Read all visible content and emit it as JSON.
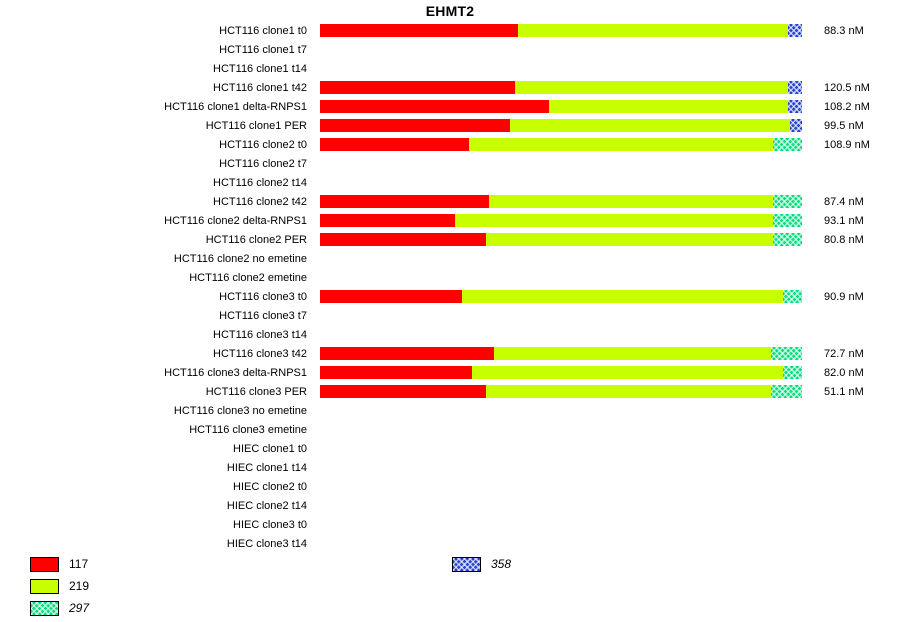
{
  "title": "EHMT2",
  "chart_data": {
    "type": "bar",
    "orientation": "horizontal",
    "stacked": true,
    "title": "EHMT2",
    "unit": "nM",
    "note": "segment pct values are percent of full bar length; rows with empty segments show no bar",
    "series": [
      {
        "name": "117",
        "color": "#ff0000",
        "pattern": false
      },
      {
        "name": "219",
        "color": "#c8ff00",
        "pattern": false
      },
      {
        "name": "297",
        "color": "#00dd7d",
        "pattern": true
      },
      {
        "name": "358",
        "color": "#2442cc",
        "pattern": true
      }
    ],
    "rows": [
      {
        "label": "HCT116 clone1 t0",
        "value": "88.3 nM",
        "segments": [
          {
            "series": "117",
            "pct": 41
          },
          {
            "series": "219",
            "pct": 56
          },
          {
            "series": "358",
            "pct": 3
          }
        ]
      },
      {
        "label": "HCT116 clone1 t7",
        "value": "",
        "segments": []
      },
      {
        "label": "HCT116 clone1 t14",
        "value": "",
        "segments": []
      },
      {
        "label": "HCT116 clone1 t42",
        "value": "120.5 nM",
        "segments": [
          {
            "series": "117",
            "pct": 40.5
          },
          {
            "series": "219",
            "pct": 56.5
          },
          {
            "series": "358",
            "pct": 3
          }
        ]
      },
      {
        "label": "HCT116 clone1 delta-RNPS1",
        "value": "108.2 nM",
        "segments": [
          {
            "series": "117",
            "pct": 47.5
          },
          {
            "series": "219",
            "pct": 49.5
          },
          {
            "series": "358",
            "pct": 3
          }
        ]
      },
      {
        "label": "HCT116 clone1 PER",
        "value": "99.5 nM",
        "segments": [
          {
            "series": "117",
            "pct": 39.5
          },
          {
            "series": "219",
            "pct": 58
          },
          {
            "series": "358",
            "pct": 2.5
          }
        ]
      },
      {
        "label": "HCT116 clone2 t0",
        "value": "108.9 nM",
        "segments": [
          {
            "series": "117",
            "pct": 31
          },
          {
            "series": "219",
            "pct": 63
          },
          {
            "series": "297",
            "pct": 6
          }
        ]
      },
      {
        "label": "HCT116 clone2 t7",
        "value": "",
        "segments": []
      },
      {
        "label": "HCT116 clone2 t14",
        "value": "",
        "segments": []
      },
      {
        "label": "HCT116 clone2 t42",
        "value": "87.4 nM",
        "segments": [
          {
            "series": "117",
            "pct": 35
          },
          {
            "series": "219",
            "pct": 59
          },
          {
            "series": "297",
            "pct": 6
          }
        ]
      },
      {
        "label": "HCT116 clone2 delta-RNPS1",
        "value": "93.1 nM",
        "segments": [
          {
            "series": "117",
            "pct": 28
          },
          {
            "series": "219",
            "pct": 66
          },
          {
            "series": "297",
            "pct": 6
          }
        ]
      },
      {
        "label": "HCT116 clone2 PER",
        "value": "80.8 nM",
        "segments": [
          {
            "series": "117",
            "pct": 34.5
          },
          {
            "series": "219",
            "pct": 59.5
          },
          {
            "series": "297",
            "pct": 6
          }
        ]
      },
      {
        "label": "HCT116 clone2 no emetine",
        "value": "",
        "segments": []
      },
      {
        "label": "HCT116 clone2 emetine",
        "value": "",
        "segments": []
      },
      {
        "label": "HCT116 clone3 t0",
        "value": "90.9 nM",
        "segments": [
          {
            "series": "117",
            "pct": 29.5
          },
          {
            "series": "219",
            "pct": 66.5
          },
          {
            "series": "297",
            "pct": 4
          }
        ]
      },
      {
        "label": "HCT116 clone3 t7",
        "value": "",
        "segments": []
      },
      {
        "label": "HCT116 clone3 t14",
        "value": "",
        "segments": []
      },
      {
        "label": "HCT116 clone3 t42",
        "value": "72.7 nM",
        "segments": [
          {
            "series": "117",
            "pct": 36
          },
          {
            "series": "219",
            "pct": 57.5
          },
          {
            "series": "297",
            "pct": 6.5
          }
        ]
      },
      {
        "label": "HCT116 clone3 delta-RNPS1",
        "value": "82.0 nM",
        "segments": [
          {
            "series": "117",
            "pct": 31.5
          },
          {
            "series": "219",
            "pct": 64.5
          },
          {
            "series": "297",
            "pct": 4
          }
        ]
      },
      {
        "label": "HCT116 clone3 PER",
        "value": "51.1 nM",
        "segments": [
          {
            "series": "117",
            "pct": 34.5
          },
          {
            "series": "219",
            "pct": 59
          },
          {
            "series": "297",
            "pct": 6.5
          }
        ]
      },
      {
        "label": "HCT116 clone3 no emetine",
        "value": "",
        "segments": []
      },
      {
        "label": "HCT116 clone3 emetine",
        "value": "",
        "segments": []
      },
      {
        "label": "HIEC clone1 t0",
        "value": "",
        "segments": []
      },
      {
        "label": "HIEC clone1 t14",
        "value": "",
        "segments": []
      },
      {
        "label": "HIEC clone2 t0",
        "value": "",
        "segments": []
      },
      {
        "label": "HIEC clone2 t14",
        "value": "",
        "segments": []
      },
      {
        "label": "HIEC clone3 t0",
        "value": "",
        "segments": []
      },
      {
        "label": "HIEC clone3 t14",
        "value": "",
        "segments": []
      }
    ]
  },
  "legend": {
    "items": [
      {
        "label": "117",
        "series": "117",
        "italic": false,
        "group": "left"
      },
      {
        "label": "219",
        "series": "219",
        "italic": false,
        "group": "left"
      },
      {
        "label": "297",
        "series": "297",
        "italic": true,
        "group": "left"
      },
      {
        "label": "358",
        "series": "358",
        "italic": true,
        "group": "right"
      }
    ]
  }
}
